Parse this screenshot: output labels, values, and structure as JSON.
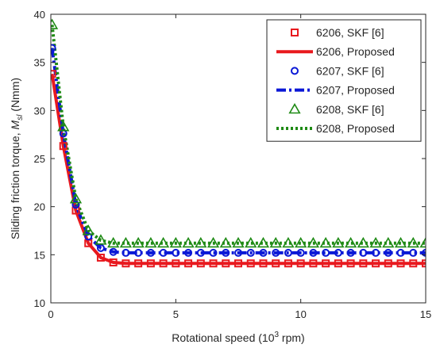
{
  "chart_data": {
    "type": "line",
    "xlabel": "Rotational speed (10",
    "xlabel_sup": "3",
    "xlabel_tail": " rpm)",
    "ylabel": "Sliding friction torque, ",
    "ylabel_var": "M",
    "ylabel_sub": "sl",
    "ylabel_unit": " (Nmm)",
    "xlim": [
      0,
      15
    ],
    "ylim": [
      10,
      40
    ],
    "xticks": [
      0,
      5,
      10,
      15
    ],
    "xtick_labels": [
      "0",
      "5",
      "10",
      "15"
    ],
    "yticks": [
      10,
      15,
      20,
      25,
      30,
      35,
      40
    ],
    "ytick_labels": [
      "10",
      "15",
      "20",
      "25",
      "30",
      "35",
      "40"
    ],
    "grid": false,
    "legend_position": "top-right",
    "colors": {
      "red": "#e8191e",
      "blue": "#0a18d6",
      "green": "#1e8a14",
      "axis": "#262626"
    },
    "series": [
      {
        "name": "6206, SKF [6]",
        "kind": "marker",
        "marker": "square",
        "color": "#e8191e",
        "x": [
          0.05,
          0.5,
          1.0,
          1.5,
          2.0,
          2.5,
          3.0,
          3.5,
          4.0,
          4.5,
          5.0,
          5.5,
          6.0,
          6.5,
          7.0,
          7.5,
          8.0,
          8.5,
          9.0,
          9.5,
          10.0,
          10.5,
          11.0,
          11.5,
          12.0,
          12.5,
          13.0,
          13.5,
          14.0,
          14.5,
          15.0
        ],
        "y": [
          33.8,
          26.3,
          19.6,
          16.2,
          14.7,
          14.2,
          14.1,
          14.1,
          14.1,
          14.1,
          14.1,
          14.1,
          14.1,
          14.1,
          14.1,
          14.1,
          14.1,
          14.1,
          14.1,
          14.1,
          14.1,
          14.1,
          14.1,
          14.1,
          14.1,
          14.1,
          14.1,
          14.1,
          14.1,
          14.1,
          14.1
        ]
      },
      {
        "name": "6206, Proposed",
        "kind": "line",
        "dash": "solid",
        "color": "#e8191e",
        "x": [
          0.05,
          0.5,
          1.0,
          1.5,
          2.0,
          2.5,
          3.0,
          4.0,
          15.0
        ],
        "y": [
          33.8,
          26.3,
          19.6,
          16.2,
          14.7,
          14.2,
          14.1,
          14.1,
          14.1
        ]
      },
      {
        "name": "6207, SKF [6]",
        "kind": "marker",
        "marker": "circle",
        "color": "#0a18d6",
        "x": [
          0.05,
          0.5,
          1.0,
          1.5,
          2.0,
          2.5,
          3.0,
          3.5,
          4.0,
          4.5,
          5.0,
          5.5,
          6.0,
          6.5,
          7.0,
          7.5,
          8.0,
          8.5,
          9.0,
          9.5,
          10.0,
          10.5,
          11.0,
          11.5,
          12.0,
          12.5,
          13.0,
          13.5,
          14.0,
          14.5,
          15.0
        ],
        "y": [
          36.5,
          27.6,
          20.2,
          16.9,
          15.7,
          15.3,
          15.2,
          15.2,
          15.2,
          15.2,
          15.2,
          15.2,
          15.2,
          15.2,
          15.2,
          15.2,
          15.2,
          15.2,
          15.2,
          15.2,
          15.2,
          15.2,
          15.2,
          15.2,
          15.2,
          15.2,
          15.2,
          15.2,
          15.2,
          15.2,
          15.2
        ]
      },
      {
        "name": "6207, Proposed",
        "kind": "line",
        "dash": "dashdot",
        "color": "#0a18d6",
        "x": [
          0.05,
          0.5,
          1.0,
          1.5,
          2.0,
          2.5,
          3.0,
          4.0,
          15.0
        ],
        "y": [
          36.5,
          27.6,
          20.2,
          16.9,
          15.7,
          15.3,
          15.2,
          15.2,
          15.2
        ]
      },
      {
        "name": "6208, SKF [6]",
        "kind": "marker",
        "marker": "triangle",
        "color": "#1e8a14",
        "x": [
          0.05,
          0.5,
          1.0,
          1.5,
          2.0,
          2.5,
          3.0,
          3.5,
          4.0,
          4.5,
          5.0,
          5.5,
          6.0,
          6.5,
          7.0,
          7.5,
          8.0,
          8.5,
          9.0,
          9.5,
          10.0,
          10.5,
          11.0,
          11.5,
          12.0,
          12.5,
          13.0,
          13.5,
          14.0,
          14.5,
          15.0
        ],
        "y": [
          38.9,
          28.3,
          20.8,
          17.5,
          16.5,
          16.2,
          16.2,
          16.2,
          16.2,
          16.2,
          16.2,
          16.2,
          16.2,
          16.2,
          16.2,
          16.2,
          16.2,
          16.2,
          16.2,
          16.2,
          16.2,
          16.2,
          16.2,
          16.2,
          16.2,
          16.2,
          16.2,
          16.2,
          16.2,
          16.2,
          16.2
        ]
      },
      {
        "name": "6208, Proposed",
        "kind": "line",
        "dash": "dotted",
        "color": "#1e8a14",
        "x": [
          0.05,
          0.5,
          1.0,
          1.5,
          2.0,
          2.5,
          3.0,
          4.0,
          15.0
        ],
        "y": [
          38.9,
          28.3,
          20.8,
          17.5,
          16.5,
          16.2,
          16.2,
          16.2,
          16.2
        ]
      }
    ]
  }
}
